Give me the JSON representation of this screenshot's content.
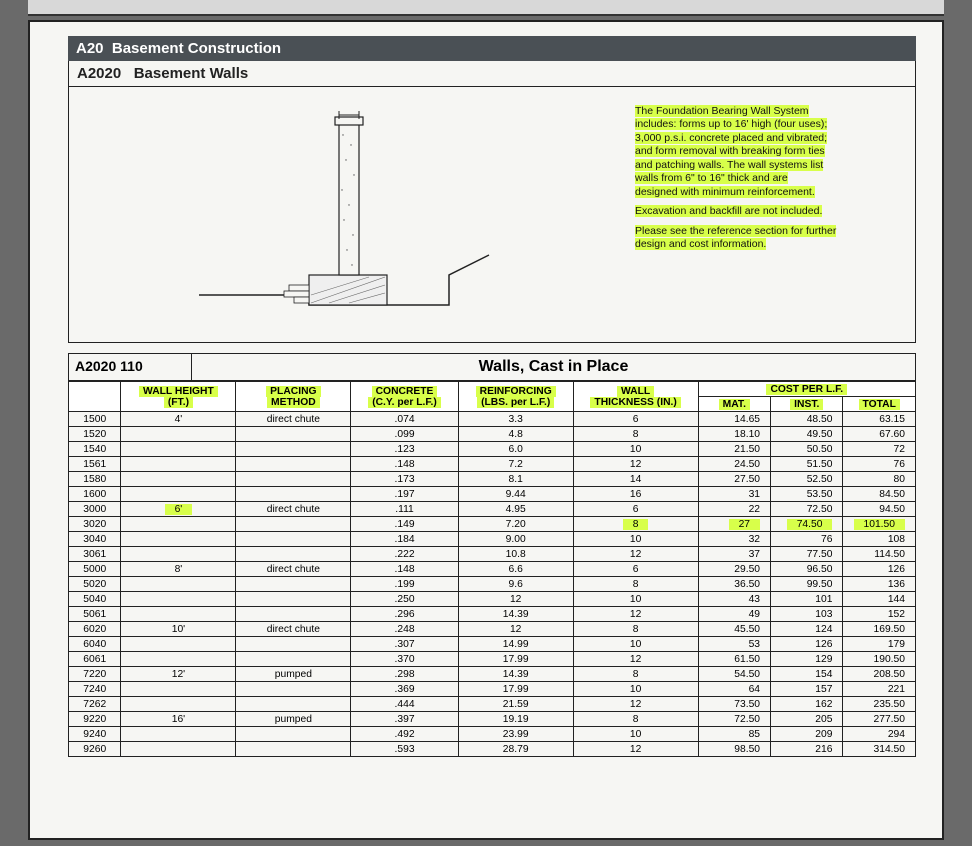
{
  "colors": {
    "highlight": "#d8ff4a",
    "header_bar": "#4a5055",
    "paper": "#f6f6f3",
    "page_bg": "#6a6a6a",
    "rule": "#222222"
  },
  "typography": {
    "base_family": "Arial",
    "title_size_pt": 15,
    "table_size_pt": 10.3,
    "desc_size_pt": 10.5
  },
  "header": {
    "section_code": "A20",
    "section_title": "Basement Construction",
    "sub_code": "A2020",
    "sub_title": "Basement Walls"
  },
  "description": {
    "p1": "The Foundation Bearing Wall System",
    "p2": "includes: forms up to 16' high (four uses);",
    "p3": "3,000 p.s.i. concrete placed and vibrated;",
    "p4": "and form removal with breaking form ties",
    "p5": "and patching walls. The wall systems list",
    "p6": "walls from 6\" to 16\" thick and are",
    "p7": "designed with minimum reinforcement.",
    "p8": "Excavation and backfill are not included.",
    "p9": "Please see the reference section for further",
    "p10": "design and cost information."
  },
  "table": {
    "code": "A2020 110",
    "title": "Walls, Cast in Place",
    "headers": {
      "wall_height_l1": "WALL HEIGHT",
      "wall_height_l2": "(FT.)",
      "placing_l1": "PLACING",
      "placing_l2": "METHOD",
      "concrete_l1": "CONCRETE",
      "concrete_l2": "(C.Y. per L.F.)",
      "reinf_l1": "REINFORCING",
      "reinf_l2": "(LBS. per L.F.)",
      "thick_l1": "WALL",
      "thick_l2": "THICKNESS (IN.)",
      "cost": "COST PER L.F.",
      "mat": "MAT.",
      "inst": "INST.",
      "total": "TOTAL"
    },
    "columns": [
      "idx",
      "height",
      "placing",
      "cy",
      "lbs",
      "thick",
      "mat",
      "inst",
      "total"
    ],
    "groups": [
      {
        "height": "4'",
        "height_hl": false,
        "placing": "direct chute",
        "rows": [
          {
            "idx": "1500",
            "cy": ".074",
            "lbs": "3.3",
            "thick": "6",
            "mat": "14.65",
            "inst": "48.50",
            "total": "63.15"
          },
          {
            "idx": "1520",
            "cy": ".099",
            "lbs": "4.8",
            "thick": "8",
            "mat": "18.10",
            "inst": "49.50",
            "total": "67.60"
          },
          {
            "idx": "1540",
            "cy": ".123",
            "lbs": "6.0",
            "thick": "10",
            "mat": "21.50",
            "inst": "50.50",
            "total": "72"
          },
          {
            "idx": "1561",
            "cy": ".148",
            "lbs": "7.2",
            "thick": "12",
            "mat": "24.50",
            "inst": "51.50",
            "total": "76"
          },
          {
            "idx": "1580",
            "cy": ".173",
            "lbs": "8.1",
            "thick": "14",
            "mat": "27.50",
            "inst": "52.50",
            "total": "80"
          },
          {
            "idx": "1600",
            "cy": ".197",
            "lbs": "9.44",
            "thick": "16",
            "mat": "31",
            "inst": "53.50",
            "total": "84.50"
          }
        ]
      },
      {
        "height": "6'",
        "height_hl": true,
        "placing": "direct chute",
        "rows": [
          {
            "idx": "3000",
            "cy": ".111",
            "lbs": "4.95",
            "thick": "6",
            "mat": "22",
            "inst": "72.50",
            "total": "94.50"
          },
          {
            "idx": "3020",
            "cy": ".149",
            "lbs": "7.20",
            "thick": "8",
            "thick_hl": true,
            "mat": "27",
            "mat_hl": true,
            "inst": "74.50",
            "inst_hl": true,
            "total": "101.50",
            "total_hl": true
          },
          {
            "idx": "3040",
            "cy": ".184",
            "lbs": "9.00",
            "thick": "10",
            "mat": "32",
            "inst": "76",
            "total": "108"
          },
          {
            "idx": "3061",
            "cy": ".222",
            "lbs": "10.8",
            "thick": "12",
            "mat": "37",
            "inst": "77.50",
            "total": "114.50"
          }
        ]
      },
      {
        "height": "8'",
        "height_hl": false,
        "placing": "direct chute",
        "rows": [
          {
            "idx": "5000",
            "cy": ".148",
            "lbs": "6.6",
            "thick": "6",
            "mat": "29.50",
            "inst": "96.50",
            "total": "126"
          },
          {
            "idx": "5020",
            "cy": ".199",
            "lbs": "9.6",
            "thick": "8",
            "mat": "36.50",
            "inst": "99.50",
            "total": "136"
          },
          {
            "idx": "5040",
            "cy": ".250",
            "lbs": "12",
            "thick": "10",
            "mat": "43",
            "inst": "101",
            "total": "144"
          },
          {
            "idx": "5061",
            "cy": ".296",
            "lbs": "14.39",
            "thick": "12",
            "mat": "49",
            "inst": "103",
            "total": "152"
          }
        ]
      },
      {
        "height": "10'",
        "height_hl": false,
        "placing": "direct chute",
        "rows": [
          {
            "idx": "6020",
            "cy": ".248",
            "lbs": "12",
            "thick": "8",
            "mat": "45.50",
            "inst": "124",
            "total": "169.50"
          },
          {
            "idx": "6040",
            "cy": ".307",
            "lbs": "14.99",
            "thick": "10",
            "mat": "53",
            "inst": "126",
            "total": "179"
          },
          {
            "idx": "6061",
            "cy": ".370",
            "lbs": "17.99",
            "thick": "12",
            "mat": "61.50",
            "inst": "129",
            "total": "190.50"
          }
        ]
      },
      {
        "height": "12'",
        "height_hl": false,
        "placing": "pumped",
        "rows": [
          {
            "idx": "7220",
            "cy": ".298",
            "lbs": "14.39",
            "thick": "8",
            "mat": "54.50",
            "inst": "154",
            "total": "208.50"
          },
          {
            "idx": "7240",
            "cy": ".369",
            "lbs": "17.99",
            "thick": "10",
            "mat": "64",
            "inst": "157",
            "total": "221"
          },
          {
            "idx": "7262",
            "cy": ".444",
            "lbs": "21.59",
            "thick": "12",
            "mat": "73.50",
            "inst": "162",
            "total": "235.50"
          }
        ]
      },
      {
        "height": "16'",
        "height_hl": false,
        "placing": "pumped",
        "rows": [
          {
            "idx": "9220",
            "cy": ".397",
            "lbs": "19.19",
            "thick": "8",
            "mat": "72.50",
            "inst": "205",
            "total": "277.50"
          },
          {
            "idx": "9240",
            "cy": ".492",
            "lbs": "23.99",
            "thick": "10",
            "mat": "85",
            "inst": "209",
            "total": "294"
          },
          {
            "idx": "9260",
            "cy": ".593",
            "lbs": "28.79",
            "thick": "12",
            "mat": "98.50",
            "inst": "216",
            "total": "314.50"
          }
        ]
      }
    ]
  }
}
